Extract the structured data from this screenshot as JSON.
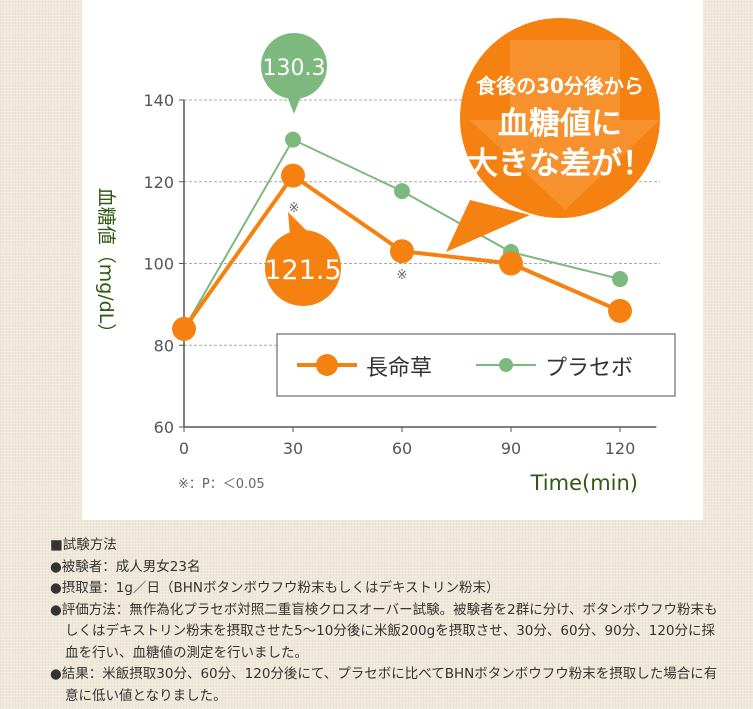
{
  "chart_data": {
    "type": "line",
    "x": [
      0,
      30,
      60,
      90,
      120
    ],
    "series": [
      {
        "name": "長命草",
        "color": "#f58210",
        "values": [
          84,
          121.5,
          103,
          100,
          88.4
        ]
      },
      {
        "name": "プラセボ",
        "color": "#7db97f",
        "values": [
          84,
          130.3,
          117.7,
          102.8,
          96.2
        ]
      }
    ],
    "xlabel": "Time(min)",
    "ylabel": "血糖値（mg/dL）",
    "xticks": [
      "0",
      "30",
      "60",
      "90",
      "120"
    ],
    "yticks": [
      "60",
      "80",
      "100",
      "120",
      "140"
    ],
    "ylim": [
      60,
      140
    ],
    "xlim": [
      0,
      130
    ],
    "grid": true,
    "legend": "bottom-center",
    "callouts": {
      "green": "130.3",
      "orange": "121.5"
    },
    "significance_marks": [
      "※",
      "※"
    ],
    "footnote": "※：P：＜0.05",
    "bubble": {
      "line1": "食後の30分後から",
      "line2": "血糖値に",
      "line3": "大きな差が！"
    }
  },
  "notes": {
    "heading": "■試験方法",
    "items": [
      "●被験者：成人男女23名",
      "●摂取量：1g／日（BHNボタンボウフウ粉末もしくはデキストリン粉末）",
      "●評価方法：無作為化プラセボ対照二重盲検クロスオーバー試験。被験者を2群に分け、ボタンボウフウ粉末もしくはデキストリン粉末を摂取させた5〜10分後に米飯200gを摂取させ、30分、60分、90分、120分に採血を行い、血糖値の測定を行いました。",
      "●結果：米飯摂取30分、60分、120分後にて、プラセボに比べてBHNボタンボウフウ粉末を摂取した場合に有意に低い値となりました。"
    ]
  }
}
